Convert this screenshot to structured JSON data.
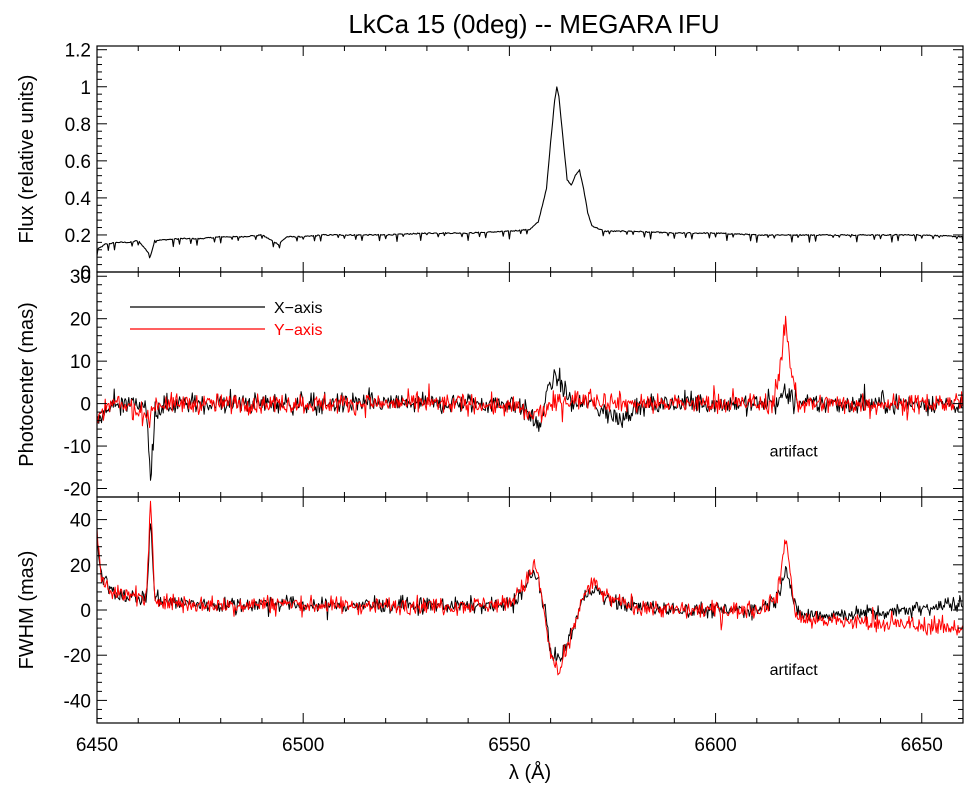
{
  "chart_data": {
    "type": "line",
    "title": "LkCa 15 (0deg) -- MEGARA IFU",
    "xlabel": "λ (Å)",
    "xlim": [
      6450,
      6660
    ],
    "x_ticks": [
      6450,
      6500,
      6550,
      6600,
      6650
    ],
    "panels": [
      {
        "ylabel": "Flux (relative units)",
        "ylim": [
          0.0,
          1.22
        ],
        "y_ticks": [
          0.0,
          0.2,
          0.4,
          0.6,
          0.8,
          1.0,
          1.2
        ],
        "series": [
          {
            "color": "#000000",
            "points": [
              [
                6450,
                0.12
              ],
              [
                6452,
                0.15
              ],
              [
                6455,
                0.16
              ],
              [
                6458,
                0.16
              ],
              [
                6460,
                0.17
              ],
              [
                6463,
                0.09
              ],
              [
                6464,
                0.17
              ],
              [
                6470,
                0.18
              ],
              [
                6475,
                0.18
              ],
              [
                6480,
                0.19
              ],
              [
                6485,
                0.19
              ],
              [
                6490,
                0.2
              ],
              [
                6494,
                0.15
              ],
              [
                6496,
                0.19
              ],
              [
                6500,
                0.19
              ],
              [
                6505,
                0.2
              ],
              [
                6510,
                0.2
              ],
              [
                6520,
                0.2
              ],
              [
                6530,
                0.21
              ],
              [
                6540,
                0.21
              ],
              [
                6550,
                0.22
              ],
              [
                6555,
                0.23
              ],
              [
                6557,
                0.27
              ],
              [
                6559,
                0.45
              ],
              [
                6560,
                0.7
              ],
              [
                6561,
                0.93
              ],
              [
                6561.5,
                1.0
              ],
              [
                6562,
                0.95
              ],
              [
                6563,
                0.72
              ],
              [
                6564,
                0.5
              ],
              [
                6565,
                0.47
              ],
              [
                6566,
                0.52
              ],
              [
                6567,
                0.55
              ],
              [
                6568,
                0.45
              ],
              [
                6569,
                0.32
              ],
              [
                6570,
                0.25
              ],
              [
                6573,
                0.22
              ],
              [
                6580,
                0.22
              ],
              [
                6590,
                0.21
              ],
              [
                6600,
                0.21
              ],
              [
                6610,
                0.2
              ],
              [
                6620,
                0.2
              ],
              [
                6630,
                0.2
              ],
              [
                6640,
                0.2
              ],
              [
                6650,
                0.2
              ],
              [
                6660,
                0.19
              ]
            ]
          }
        ]
      },
      {
        "ylabel": "Photocenter (mas)",
        "ylim": [
          -22,
          31
        ],
        "y_ticks": [
          -20,
          -10,
          0,
          10,
          20,
          30
        ],
        "legend": {
          "position": "top-left",
          "entries": [
            {
              "label": "X−axis",
              "color": "#000000"
            },
            {
              "label": "Y−axis",
              "color": "#ff0000"
            }
          ]
        },
        "annotations": [
          {
            "text": "artifact",
            "x": 6617,
            "y": -11
          }
        ],
        "series": [
          {
            "name": "X−axis",
            "color": "#000000",
            "noise": 2.3,
            "points": [
              [
                6450,
                -5
              ],
              [
                6452,
                -2
              ],
              [
                6455,
                0
              ],
              [
                6460,
                0
              ],
              [
                6462,
                -1
              ],
              [
                6463,
                -19
              ],
              [
                6464,
                -1
              ],
              [
                6470,
                0
              ],
              [
                6480,
                0
              ],
              [
                6500,
                0
              ],
              [
                6520,
                0
              ],
              [
                6540,
                0
              ],
              [
                6552,
                0
              ],
              [
                6555,
                -3
              ],
              [
                6557,
                -5
              ],
              [
                6558,
                -4
              ],
              [
                6559,
                2
              ],
              [
                6560,
                5
              ],
              [
                6562,
                6
              ],
              [
                6563,
                4
              ],
              [
                6565,
                0
              ],
              [
                6570,
                0
              ],
              [
                6575,
                -3
              ],
              [
                6577,
                -4
              ],
              [
                6580,
                -1
              ],
              [
                6590,
                0
              ],
              [
                6610,
                0
              ],
              [
                6615,
                0
              ],
              [
                6617,
                3
              ],
              [
                6619,
                0
              ],
              [
                6630,
                0
              ],
              [
                6660,
                0
              ]
            ]
          },
          {
            "name": "Y−axis",
            "color": "#ff0000",
            "noise": 2.2,
            "points": [
              [
                6450,
                -5
              ],
              [
                6452,
                -1
              ],
              [
                6455,
                0
              ],
              [
                6463,
                -3
              ],
              [
                6464,
                0
              ],
              [
                6480,
                0
              ],
              [
                6500,
                0
              ],
              [
                6520,
                0
              ],
              [
                6540,
                0
              ],
              [
                6552,
                -1
              ],
              [
                6555,
                -3
              ],
              [
                6558,
                -2
              ],
              [
                6561,
                0
              ],
              [
                6565,
                1
              ],
              [
                6570,
                1
              ],
              [
                6580,
                0
              ],
              [
                6600,
                0
              ],
              [
                6614,
                0
              ],
              [
                6616,
                10
              ],
              [
                6617,
                20
              ],
              [
                6618,
                10
              ],
              [
                6620,
                0
              ],
              [
                6640,
                0
              ],
              [
                6660,
                0
              ]
            ]
          }
        ]
      },
      {
        "ylabel": "FWHM (mas)",
        "ylim": [
          -50,
          50
        ],
        "y_ticks": [
          -40,
          -20,
          0,
          20,
          40
        ],
        "annotations": [
          {
            "text": "artifact",
            "x": 6617,
            "y": -26
          }
        ],
        "series": [
          {
            "name": "X−axis",
            "color": "#000000",
            "noise": 3.2,
            "points": [
              [
                6450,
                30
              ],
              [
                6451,
                15
              ],
              [
                6454,
                8
              ],
              [
                6458,
                6
              ],
              [
                6462,
                5
              ],
              [
                6463,
                40
              ],
              [
                6464,
                5
              ],
              [
                6470,
                3
              ],
              [
                6480,
                2
              ],
              [
                6495,
                3
              ],
              [
                6500,
                2
              ],
              [
                6520,
                2
              ],
              [
                6540,
                2
              ],
              [
                6550,
                2
              ],
              [
                6554,
                10
              ],
              [
                6556,
                17
              ],
              [
                6557,
                12
              ],
              [
                6559,
                -5
              ],
              [
                6560,
                -18
              ],
              [
                6562,
                -22
              ],
              [
                6564,
                -15
              ],
              [
                6566,
                -5
              ],
              [
                6568,
                5
              ],
              [
                6570,
                10
              ],
              [
                6574,
                4
              ],
              [
                6580,
                2
              ],
              [
                6590,
                0
              ],
              [
                6600,
                0
              ],
              [
                6610,
                0
              ],
              [
                6615,
                5
              ],
              [
                6617,
                20
              ],
              [
                6619,
                3
              ],
              [
                6620,
                -2
              ],
              [
                6630,
                -2
              ],
              [
                6640,
                -1
              ],
              [
                6650,
                1
              ],
              [
                6660,
                3
              ]
            ]
          },
          {
            "name": "Y−axis",
            "color": "#ff0000",
            "noise": 3.6,
            "points": [
              [
                6450,
                35
              ],
              [
                6451,
                15
              ],
              [
                6454,
                8
              ],
              [
                6458,
                6
              ],
              [
                6462,
                5
              ],
              [
                6463,
                48
              ],
              [
                6464,
                5
              ],
              [
                6470,
                3
              ],
              [
                6480,
                2
              ],
              [
                6495,
                3
              ],
              [
                6500,
                2
              ],
              [
                6520,
                2
              ],
              [
                6540,
                2
              ],
              [
                6550,
                3
              ],
              [
                6554,
                12
              ],
              [
                6556,
                20
              ],
              [
                6557,
                15
              ],
              [
                6559,
                -8
              ],
              [
                6560,
                -20
              ],
              [
                6562,
                -28
              ],
              [
                6564,
                -18
              ],
              [
                6566,
                -6
              ],
              [
                6568,
                6
              ],
              [
                6570,
                12
              ],
              [
                6574,
                5
              ],
              [
                6580,
                2
              ],
              [
                6590,
                0
              ],
              [
                6600,
                0
              ],
              [
                6610,
                0
              ],
              [
                6615,
                6
              ],
              [
                6617,
                33
              ],
              [
                6619,
                3
              ],
              [
                6620,
                -4
              ],
              [
                6630,
                -5
              ],
              [
                6640,
                -6
              ],
              [
                6650,
                -7
              ],
              [
                6660,
                -8
              ]
            ]
          }
        ]
      }
    ]
  }
}
